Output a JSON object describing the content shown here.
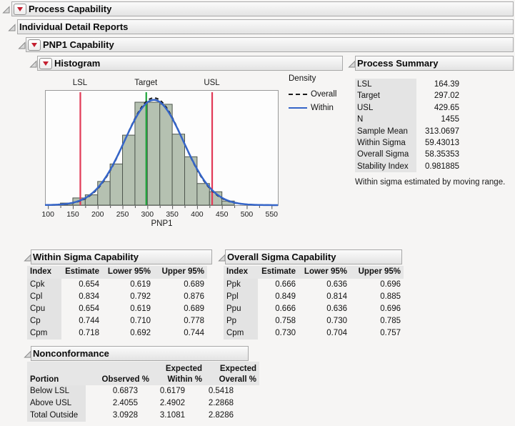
{
  "outline": {
    "process_capability": "Process Capability",
    "individual_detail_reports": "Individual Detail Reports",
    "pnp1_capability": "PNP1 Capability",
    "histogram": "Histogram",
    "process_summary": "Process Summary",
    "within_sigma_capability": "Within Sigma Capability",
    "overall_sigma_capability": "Overall Sigma Capability",
    "nonconformance": "Nonconformance"
  },
  "legend": {
    "title": "Density",
    "entries": [
      {
        "label": "Overall",
        "style": "dashed",
        "color": "#1a1a1a"
      },
      {
        "label": "Within",
        "style": "solid",
        "color": "#3565c8"
      }
    ]
  },
  "process_summary": {
    "rows": [
      {
        "label": "LSL",
        "value": "164.39"
      },
      {
        "label": "Target",
        "value": "297.02"
      },
      {
        "label": "USL",
        "value": "429.65"
      },
      {
        "label": "N",
        "value": "1455"
      },
      {
        "label": "Sample Mean",
        "value": "313.0697"
      },
      {
        "label": "Within Sigma",
        "value": "59.43013"
      },
      {
        "label": "Overall Sigma",
        "value": "58.35353"
      },
      {
        "label": "Stability Index",
        "value": "0.981885"
      }
    ],
    "note": "Within sigma estimated by moving range."
  },
  "within_capability": {
    "headers": [
      "Index",
      "Estimate",
      "Lower 95%",
      "Upper 95%"
    ],
    "rows": [
      {
        "index": "Cpk",
        "estimate": "0.654",
        "lower": "0.619",
        "upper": "0.689"
      },
      {
        "index": "Cpl",
        "estimate": "0.834",
        "lower": "0.792",
        "upper": "0.876"
      },
      {
        "index": "Cpu",
        "estimate": "0.654",
        "lower": "0.619",
        "upper": "0.689"
      },
      {
        "index": "Cp",
        "estimate": "0.744",
        "lower": "0.710",
        "upper": "0.778"
      },
      {
        "index": "Cpm",
        "estimate": "0.718",
        "lower": "0.692",
        "upper": "0.744"
      }
    ]
  },
  "overall_capability": {
    "headers": [
      "Index",
      "Estimate",
      "Lower 95%",
      "Upper 95%"
    ],
    "rows": [
      {
        "index": "Ppk",
        "estimate": "0.666",
        "lower": "0.636",
        "upper": "0.696"
      },
      {
        "index": "Ppl",
        "estimate": "0.849",
        "lower": "0.814",
        "upper": "0.885"
      },
      {
        "index": "Ppu",
        "estimate": "0.666",
        "lower": "0.636",
        "upper": "0.696"
      },
      {
        "index": "Pp",
        "estimate": "0.758",
        "lower": "0.730",
        "upper": "0.785"
      },
      {
        "index": "Cpm",
        "estimate": "0.730",
        "lower": "0.704",
        "upper": "0.757"
      }
    ]
  },
  "nonconformance": {
    "headers": [
      {
        "line1": "",
        "line2": "Portion"
      },
      {
        "line1": "",
        "line2": "Observed %"
      },
      {
        "line1": "Expected",
        "line2": "Within %"
      },
      {
        "line1": "Expected",
        "line2": "Overall %"
      }
    ],
    "rows": [
      {
        "portion": "Below LSL",
        "observed": "0.6873",
        "expected_within": "0.6179",
        "expected_overall": "0.5418"
      },
      {
        "portion": "Above USL",
        "observed": "2.4055",
        "expected_within": "2.4902",
        "expected_overall": "2.2868"
      },
      {
        "portion": "Total Outside",
        "observed": "3.0928",
        "expected_within": "3.1081",
        "expected_overall": "2.8286"
      }
    ]
  },
  "chart_data": {
    "type": "histogram",
    "xlabel": "PNP1",
    "y_axis": "none (density scale, unlabeled)",
    "x_ticks": [
      100,
      150,
      200,
      250,
      300,
      350,
      400,
      450,
      500,
      550
    ],
    "x_minor_tick_step": 25,
    "x_axis_range": [
      94,
      564
    ],
    "bin_width": 25,
    "bins": [
      {
        "start": 125,
        "rel_height": 0.02
      },
      {
        "start": 150,
        "rel_height": 0.07
      },
      {
        "start": 175,
        "rel_height": 0.1
      },
      {
        "start": 200,
        "rel_height": 0.23
      },
      {
        "start": 225,
        "rel_height": 0.4
      },
      {
        "start": 250,
        "rel_height": 0.68
      },
      {
        "start": 275,
        "rel_height": 1.0
      },
      {
        "start": 300,
        "rel_height": 1.0
      },
      {
        "start": 325,
        "rel_height": 0.98
      },
      {
        "start": 350,
        "rel_height": 0.69
      },
      {
        "start": 375,
        "rel_height": 0.47
      },
      {
        "start": 400,
        "rel_height": 0.21
      },
      {
        "start": 425,
        "rel_height": 0.13
      },
      {
        "start": 450,
        "rel_height": 0.04
      }
    ],
    "spec_lines": [
      {
        "label": "LSL",
        "value": 164.39,
        "color": "#e23a57"
      },
      {
        "label": "Target",
        "value": 297.02,
        "color": "#1ea43a"
      },
      {
        "label": "USL",
        "value": 429.65,
        "color": "#e23a57"
      }
    ],
    "curves": [
      {
        "name": "Overall",
        "mean": 313.0697,
        "sigma": 58.35353,
        "style": "dashed",
        "color": "#1a1a1a"
      },
      {
        "name": "Within",
        "mean": 313.0697,
        "sigma": 59.43013,
        "style": "solid",
        "color": "#3565c8"
      }
    ],
    "bar_fill": "#b5c1b1",
    "bar_stroke": "#4e564e",
    "plot_bg": "#fdfdfd",
    "frame_color": "#9a9a9a"
  }
}
